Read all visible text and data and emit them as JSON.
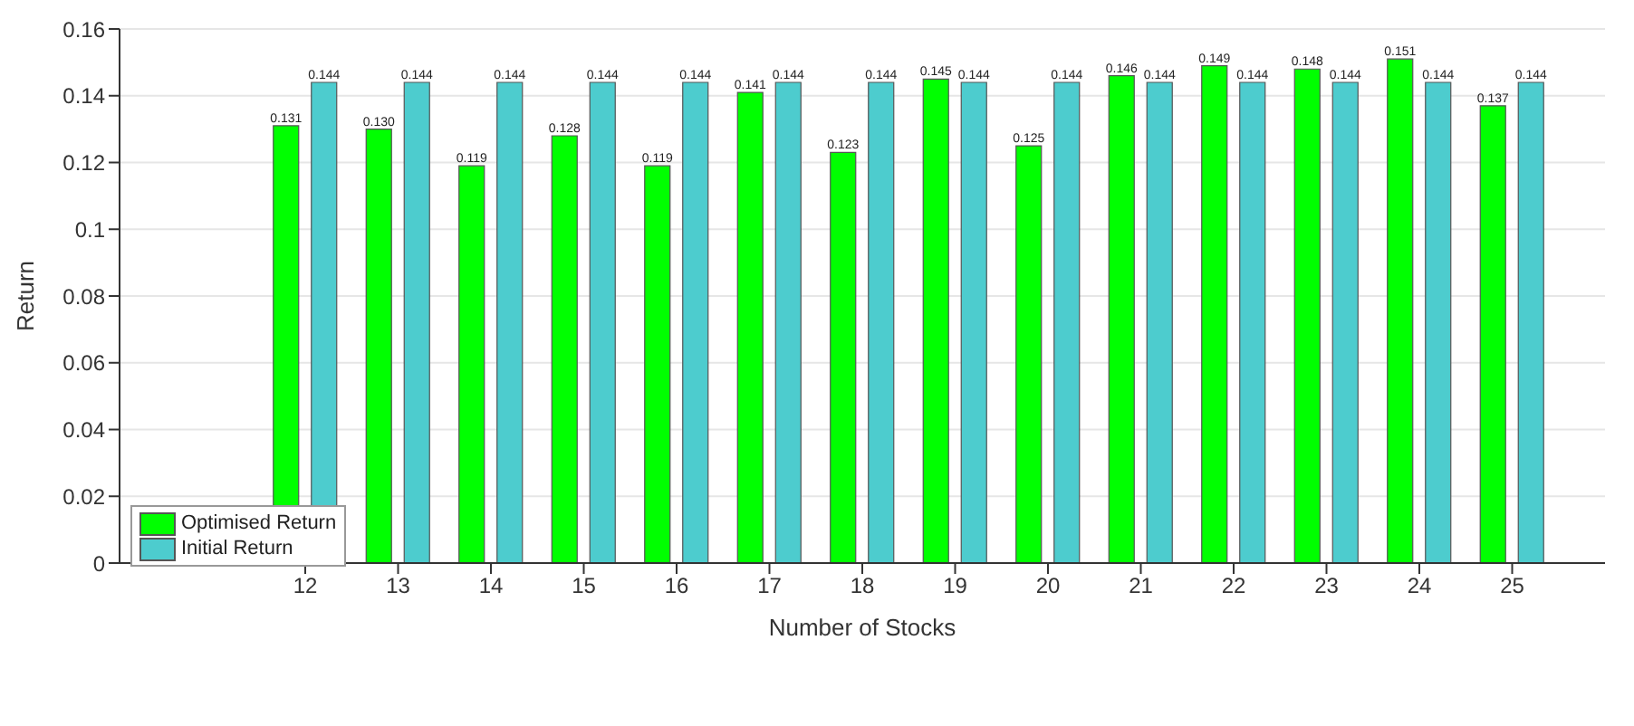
{
  "chart_data": {
    "type": "bar",
    "xlabel": "Number of Stocks",
    "ylabel": "Return",
    "x": [
      12,
      13,
      14,
      15,
      16,
      17,
      18,
      19,
      20,
      21,
      22,
      23,
      24,
      25
    ],
    "xlim": [
      10,
      26
    ],
    "xticks": [
      12,
      13,
      14,
      15,
      16,
      17,
      18,
      19,
      20,
      21,
      22,
      23,
      24,
      25
    ],
    "ylim": [
      0,
      0.16
    ],
    "yticks": [
      0,
      0.02,
      0.04,
      0.06,
      0.08,
      0.1,
      0.12,
      0.14,
      0.16
    ],
    "grid": "y",
    "legend": "bottom left",
    "series": [
      {
        "name": "Optimised Return",
        "color": "#00ff00",
        "values": [
          0.131,
          0.13,
          0.119,
          0.128,
          0.119,
          0.141,
          0.123,
          0.145,
          0.125,
          0.146,
          0.149,
          0.148,
          0.151,
          0.137
        ],
        "value_labels": [
          "0.131",
          "0.130",
          "0.119",
          "0.128",
          "0.119",
          "0.141",
          "0.123",
          "0.145",
          "0.125",
          "0.146",
          "0.149",
          "0.148",
          "0.151",
          "0.137"
        ]
      },
      {
        "name": "Initial Return",
        "color": "#4dccce",
        "values": [
          0.144,
          0.144,
          0.144,
          0.144,
          0.144,
          0.144,
          0.144,
          0.144,
          0.144,
          0.144,
          0.144,
          0.144,
          0.144,
          0.144
        ],
        "value_labels": [
          "0.144",
          "0.144",
          "0.144",
          "0.144",
          "0.144",
          "0.144",
          "0.144",
          "0.144",
          "0.144",
          "0.144",
          "0.144",
          "0.144",
          "0.144",
          "0.144"
        ]
      }
    ]
  }
}
